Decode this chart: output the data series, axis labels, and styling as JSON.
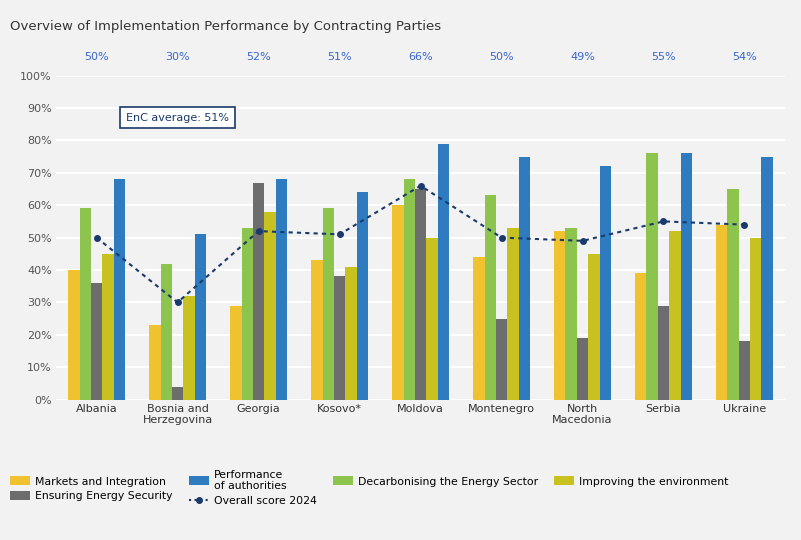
{
  "title": "Overview of Implementation Performance by Contracting Parties",
  "countries": [
    "Albania",
    "Bosnia and\nHerzegovina",
    "Georgia",
    "Kosovo*",
    "Moldova",
    "Montenegro",
    "North\nMacedonia",
    "Serbia",
    "Ukraine"
  ],
  "overall_scores": [
    50,
    30,
    52,
    51,
    66,
    50,
    49,
    55,
    54
  ],
  "bars": {
    "Markets and Integration": [
      40,
      23,
      29,
      43,
      60,
      44,
      52,
      39,
      54
    ],
    "Decarbonising the Energy Sector": [
      59,
      42,
      53,
      59,
      68,
      63,
      53,
      76,
      65
    ],
    "Ensuring Energy Security": [
      36,
      4,
      67,
      38,
      65,
      25,
      19,
      29,
      18
    ],
    "Improving the environment": [
      45,
      32,
      58,
      41,
      50,
      53,
      45,
      52,
      50
    ],
    "Performance of authorities": [
      68,
      51,
      68,
      64,
      79,
      75,
      72,
      76,
      75
    ]
  },
  "colors": {
    "Markets and Integration": "#f0c230",
    "Decarbonising the Energy Sector": "#8dc44e",
    "Ensuring Energy Security": "#6d6d6d",
    "Improving the environment": "#c8c220",
    "Performance of authorities": "#2e7bbf"
  },
  "overall_score_color": "#1a3a6b",
  "background_color": "#f2f2f2",
  "title_area_color": "#e8e8e8",
  "enc_average": 51,
  "yticks": [
    0,
    10,
    20,
    30,
    40,
    50,
    60,
    70,
    80,
    90,
    100
  ],
  "ytick_labels": [
    "0%",
    "10%",
    "20%",
    "30%",
    "40%",
    "50%",
    "60%",
    "70%",
    "80%",
    "90%",
    "100%"
  ],
  "bar_width": 0.14,
  "legend_items": [
    [
      "Markets and Integration",
      "Ensuring Energy Security",
      "Performance\nof authorities",
      "Overall score 2024"
    ],
    [
      "Decarbonising the Energy Sector",
      "Improving the environment",
      "",
      ""
    ]
  ]
}
